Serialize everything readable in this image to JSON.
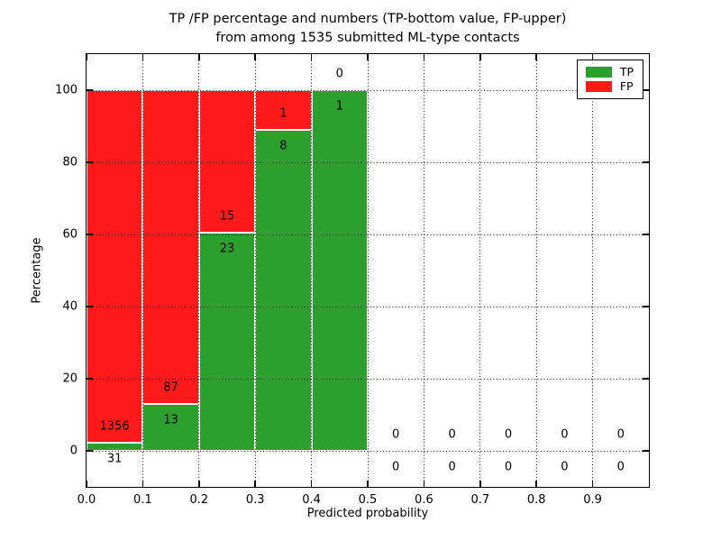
{
  "chart_data": {
    "type": "bar",
    "stacked": true,
    "units": "percent",
    "title_line1": "TP /FP percentage and numbers (TP-bottom value, FP-upper)",
    "title_line2": "from among 1535 submitted ML-type contacts",
    "total_contacts": "1535",
    "xlabel": "Predicted probability",
    "ylabel": "Percentage",
    "xlim": [
      0.0,
      1.0
    ],
    "ylim": [
      -10,
      110
    ],
    "x_tick_values": [
      0.0,
      0.1,
      0.2,
      0.3,
      0.4,
      0.5,
      0.6,
      0.7,
      0.8,
      0.9
    ],
    "x_tick_labels": [
      "0.0",
      "0.1",
      "0.2",
      "0.3",
      "0.4",
      "0.5",
      "0.6",
      "0.7",
      "0.8",
      "0.9"
    ],
    "y_tick_values": [
      0,
      20,
      40,
      60,
      80,
      100
    ],
    "y_tick_labels": [
      "0",
      "20",
      "40",
      "60",
      "80",
      "100"
    ],
    "bin_edges": [
      0.0,
      0.1,
      0.2,
      0.3,
      0.4,
      0.5,
      0.6,
      0.7,
      0.8,
      0.9,
      1.0
    ],
    "series": [
      {
        "name": "TP",
        "color": "#2ca02c",
        "counts": [
          31,
          13,
          23,
          8,
          1,
          0,
          0,
          0,
          0,
          0
        ]
      },
      {
        "name": "FP",
        "color": "#ff1a1a",
        "counts": [
          1356,
          87,
          15,
          1,
          0,
          0,
          0,
          0,
          0,
          0
        ]
      }
    ],
    "grid": true,
    "grid_style": "dotted",
    "legend": {
      "position": "upper right",
      "entries": [
        "TP",
        "FP"
      ]
    }
  },
  "colors": {
    "tp_green": "#2ca02c",
    "fp_red": "#ff1a1a",
    "grid": "#000000",
    "background": "#ffffff",
    "text": "#000000"
  }
}
